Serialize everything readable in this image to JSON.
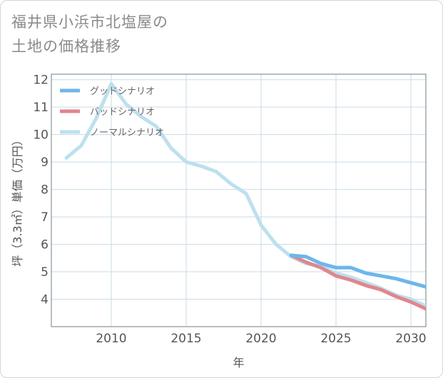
{
  "title_lines": [
    "福井県小浜市北塩屋の",
    "土地の価格推移"
  ],
  "colors": {
    "good": "#6cb6ec",
    "bad": "#e0868e",
    "normal": "#bde0ee",
    "grid": "#c9dbe6",
    "axis": "#6f7f89"
  },
  "chart_data": {
    "type": "line",
    "title": "福井県小浜市北塩屋の土地の価格推移",
    "xlabel": "年",
    "ylabel": "坪（3.3㎡）単価（万円）",
    "xlim": [
      2006,
      2031
    ],
    "ylim": [
      3,
      12.2
    ],
    "xticks": [
      2010,
      2015,
      2020,
      2025,
      2030
    ],
    "yticks": [
      4,
      5,
      6,
      7,
      8,
      9,
      10,
      11,
      12
    ],
    "legend_position": "top-left",
    "grid": true,
    "series": [
      {
        "name": "グッドシナリオ",
        "key": "good",
        "x": [
          2022,
          2023,
          2024,
          2025,
          2026,
          2027,
          2028,
          2029,
          2030,
          2031
        ],
        "y": [
          5.6,
          5.55,
          5.3,
          5.15,
          5.15,
          4.95,
          4.85,
          4.75,
          4.6,
          4.45
        ]
      },
      {
        "name": "バッドシナリオ",
        "key": "bad",
        "x": [
          2022,
          2023,
          2024,
          2025,
          2026,
          2027,
          2028,
          2029,
          2030,
          2031
        ],
        "y": [
          5.6,
          5.35,
          5.15,
          4.85,
          4.7,
          4.5,
          4.35,
          4.1,
          3.9,
          3.65
        ]
      },
      {
        "name": "ノーマルシナリオ",
        "key": "normal",
        "x": [
          2007,
          2008,
          2009,
          2010,
          2011,
          2012,
          2013,
          2014,
          2015,
          2016,
          2017,
          2018,
          2019,
          2020,
          2021,
          2022,
          2023,
          2024,
          2025,
          2026,
          2027,
          2028,
          2029,
          2030,
          2031
        ],
        "y": [
          9.15,
          9.6,
          10.6,
          11.85,
          11.1,
          10.65,
          10.3,
          9.5,
          9.0,
          8.85,
          8.65,
          8.2,
          7.85,
          6.7,
          6.0,
          5.55,
          5.3,
          5.2,
          4.95,
          4.8,
          4.6,
          4.4,
          4.15,
          4.0,
          3.75
        ]
      }
    ]
  }
}
